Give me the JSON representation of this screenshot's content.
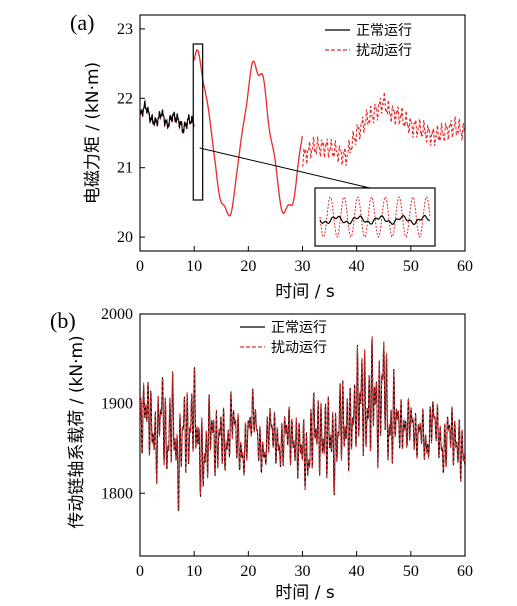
{
  "chart_data": [
    {
      "panel": "(a)",
      "type": "line",
      "xlabel": "时间 / s",
      "ylabel": "电磁力矩 / (kN·m)",
      "xlim": [
        0,
        60
      ],
      "ylim": [
        19.8,
        23.2
      ],
      "xticks": [
        0,
        10,
        20,
        30,
        40,
        50,
        60
      ],
      "yticks": [
        20,
        21,
        22,
        23
      ],
      "legend_position": "top-right",
      "series": [
        {
          "name": "正常运行",
          "color": "#000000",
          "style": "solid",
          "x": [
            0,
            1,
            2,
            3,
            4,
            5,
            6,
            7,
            8,
            9,
            10
          ],
          "y": [
            21.75,
            21.9,
            21.7,
            21.65,
            21.8,
            21.6,
            21.75,
            21.7,
            21.55,
            21.7,
            21.65
          ]
        },
        {
          "name": "扰动运行",
          "color": "#e8292b",
          "style": "dashed",
          "oscillation_x": [
            10,
            12,
            14,
            16,
            18,
            20,
            22,
            24,
            26,
            28,
            30
          ],
          "oscillation_max": [
            22.6,
            22.65,
            22.55,
            22.6,
            22.5,
            22.55,
            22.45,
            22.5,
            22.45,
            22.4,
            22.45
          ],
          "oscillation_min": [
            20.6,
            20.4,
            20.5,
            20.3,
            20.25,
            20.2,
            20.3,
            20.3,
            20.35,
            20.35,
            20.4
          ],
          "x": [
            30,
            32,
            34,
            36,
            38,
            40,
            42,
            44,
            45,
            46,
            48,
            50,
            52,
            54,
            56,
            58,
            60
          ],
          "y": [
            21.15,
            21.3,
            21.3,
            21.25,
            21.15,
            21.5,
            21.7,
            21.85,
            21.95,
            21.8,
            21.75,
            21.6,
            21.55,
            21.45,
            21.5,
            21.6,
            21.5
          ]
        }
      ],
      "zoom_inset": {
        "region_x": [
          10.2,
          11.2
        ]
      }
    },
    {
      "panel": "(b)",
      "type": "line",
      "xlabel": "时间 / s",
      "ylabel": "传动链轴系载荷 / (kN·m)",
      "xlim": [
        0,
        60
      ],
      "ylim": [
        1730,
        2000
      ],
      "xticks": [
        0,
        10,
        20,
        30,
        40,
        50,
        60
      ],
      "yticks": [
        1800,
        1900,
        2000
      ],
      "legend_position": "top-right",
      "series": [
        {
          "name": "正常运行",
          "color": "#000000",
          "style": "solid",
          "x": [
            0,
            1,
            2,
            3,
            4,
            5,
            6,
            7,
            8,
            9,
            10,
            11,
            12,
            13,
            14,
            15,
            16,
            17,
            18,
            19,
            20,
            21,
            22,
            23,
            24,
            25,
            26,
            27,
            28,
            29,
            30,
            31,
            32,
            33,
            34,
            35,
            36,
            37,
            38,
            39,
            40,
            41,
            42,
            43,
            44,
            45,
            46,
            47,
            48,
            49,
            50,
            51,
            52,
            53,
            54,
            55,
            56,
            57,
            58,
            59,
            60
          ],
          "y": [
            1870,
            1900,
            1880,
            1850,
            1905,
            1845,
            1895,
            1820,
            1880,
            1860,
            1900,
            1840,
            1835,
            1880,
            1850,
            1870,
            1845,
            1890,
            1860,
            1835,
            1870,
            1895,
            1850,
            1840,
            1880,
            1860,
            1845,
            1875,
            1860,
            1850,
            1855,
            1830,
            1880,
            1865,
            1860,
            1870,
            1840,
            1890,
            1870,
            1875,
            1900,
            1910,
            1885,
            1920,
            1880,
            1940,
            1860,
            1890,
            1875,
            1870,
            1885,
            1860,
            1875,
            1845,
            1890,
            1870,
            1840,
            1875,
            1860,
            1850,
            1840
          ]
        },
        {
          "name": "扰动运行",
          "color": "#e8292b",
          "style": "dashed",
          "x": [
            0,
            1,
            2,
            3,
            4,
            5,
            6,
            7,
            8,
            9,
            10,
            11,
            12,
            13,
            14,
            15,
            16,
            17,
            18,
            19,
            20,
            21,
            22,
            23,
            24,
            25,
            26,
            27,
            28,
            29,
            30,
            31,
            32,
            33,
            34,
            35,
            36,
            37,
            38,
            39,
            40,
            41,
            42,
            43,
            44,
            45,
            46,
            47,
            48,
            49,
            50,
            51,
            52,
            53,
            54,
            55,
            56,
            57,
            58,
            59,
            60
          ],
          "y": [
            1872,
            1902,
            1878,
            1852,
            1903,
            1847,
            1893,
            1822,
            1878,
            1862,
            1898,
            1842,
            1837,
            1878,
            1852,
            1868,
            1847,
            1888,
            1862,
            1837,
            1868,
            1893,
            1852,
            1842,
            1878,
            1862,
            1847,
            1873,
            1862,
            1852,
            1853,
            1832,
            1878,
            1867,
            1858,
            1872,
            1842,
            1888,
            1872,
            1873,
            1898,
            1912,
            1883,
            1922,
            1878,
            1942,
            1862,
            1888,
            1877,
            1868,
            1887,
            1858,
            1877,
            1843,
            1888,
            1872,
            1842,
            1873,
            1862,
            1848,
            1842
          ]
        }
      ]
    }
  ]
}
